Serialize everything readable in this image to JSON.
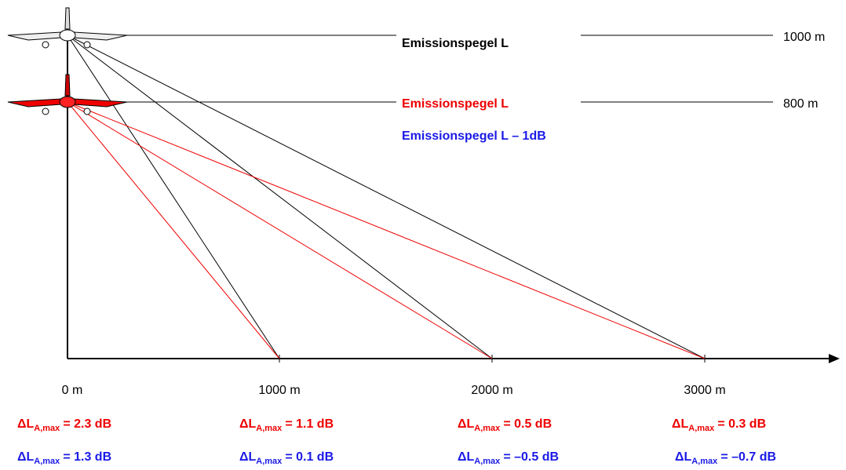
{
  "planes": [
    {
      "emission_label": "Emissionspegel L",
      "altitude": "1000 m"
    },
    {
      "emission_label": "Emissionspegel L",
      "altitude": "800 m"
    }
  ],
  "adjusted_label": "Emissionspegel L – 1dB",
  "x_labels": [
    "0 m",
    "1000 m",
    "2000 m",
    "3000 m"
  ],
  "delta_rows": [
    [
      {
        "symbol": "ΔL",
        "subscript": "A,max",
        "value": "= 2.3 dB"
      },
      {
        "symbol": "ΔL",
        "subscript": "A,max",
        "value": "= 1.1 dB"
      },
      {
        "symbol": "ΔL",
        "subscript": "A,max",
        "value": "= 0.5 dB"
      },
      {
        "symbol": "ΔL",
        "subscript": "A,max",
        "value": "= 0.3 dB"
      }
    ],
    [
      {
        "symbol": "ΔL",
        "subscript": "A,max",
        "value": "= 1.3 dB"
      },
      {
        "symbol": "ΔL",
        "subscript": "A,max",
        "value": "= 0.1 dB"
      },
      {
        "symbol": "ΔL",
        "subscript": "A,max",
        "value": "= –0.5 dB"
      },
      {
        "symbol": "ΔL",
        "subscript": "A,max",
        "value": "= –0.7 dB"
      }
    ]
  ]
}
